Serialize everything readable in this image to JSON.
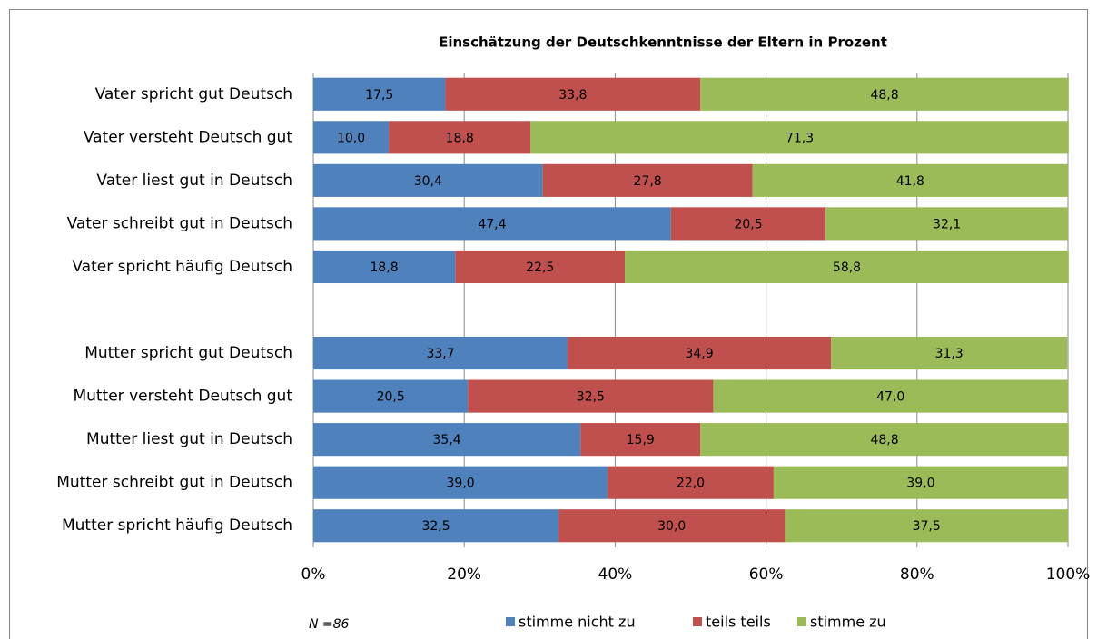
{
  "chart_data": {
    "type": "stacked_barh",
    "title": "Einschätzung der Deutschkenntnisse der Eltern in Prozent",
    "annotation": "N =86",
    "categories": [
      "Vater spricht gut Deutsch",
      "Vater versteht Deutsch gut",
      "Vater liest gut in Deutsch",
      "Vater schreibt gut in Deutsch",
      "Vater spricht häufig Deutsch",
      null,
      "Mutter spricht gut Deutsch",
      "Mutter versteht Deutsch gut",
      "Mutter liest gut in Deutsch",
      "Mutter schreibt gut in Deutsch",
      "Mutter spricht häufig Deutsch"
    ],
    "series": [
      {
        "name": "stimme nicht zu",
        "color": "#4f81bd",
        "values": [
          17.5,
          10.0,
          30.4,
          47.4,
          18.8,
          null,
          33.7,
          20.5,
          35.4,
          39.0,
          32.5
        ],
        "value_labels": [
          "17,5",
          "10,0",
          "30,4",
          "47,4",
          "18,8",
          null,
          "33,7",
          "20,5",
          "35,4",
          "39,0",
          "32,5"
        ]
      },
      {
        "name": "teils teils",
        "color": "#c0504d",
        "values": [
          33.8,
          18.8,
          27.8,
          20.5,
          22.5,
          null,
          34.9,
          32.5,
          15.9,
          22.0,
          30.0
        ],
        "value_labels": [
          "33,8",
          "18,8",
          "27,8",
          "20,5",
          "22,5",
          null,
          "34,9",
          "32,5",
          "15,9",
          "22,0",
          "30,0"
        ]
      },
      {
        "name": "stimme zu",
        "color": "#9bbb59",
        "values": [
          48.8,
          71.3,
          41.8,
          32.1,
          58.8,
          null,
          31.3,
          47.0,
          48.8,
          39.0,
          37.5
        ],
        "value_labels": [
          "48,8",
          "71,3",
          "41,8",
          "32,1",
          "58,8",
          null,
          "31,3",
          "47,0",
          "48,8",
          "39,0",
          "37,5"
        ]
      }
    ],
    "xlim": [
      0,
      100
    ],
    "xticks": [
      {
        "value": 0,
        "label": "0%"
      },
      {
        "value": 20,
        "label": "20%"
      },
      {
        "value": 40,
        "label": "40%"
      },
      {
        "value": 60,
        "label": "60%"
      },
      {
        "value": 80,
        "label": "80%"
      },
      {
        "value": 100,
        "label": "100%"
      }
    ],
    "grid": true,
    "legend": "bottom"
  }
}
